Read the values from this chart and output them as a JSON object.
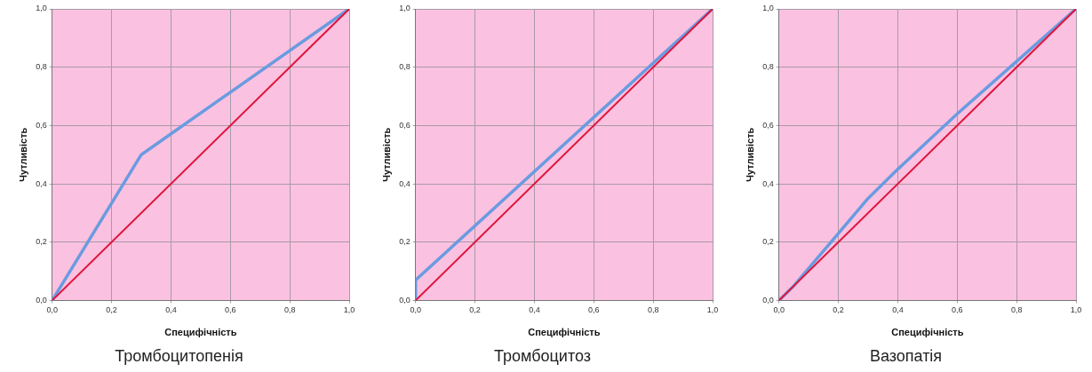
{
  "chart_data": [
    {
      "type": "line",
      "title": "Тромбоцитопенія",
      "xlabel": "Специфічність",
      "ylabel": "Чутливість",
      "xlim": [
        0,
        1
      ],
      "ylim": [
        0,
        1
      ],
      "xticks": [
        {
          "value": 0,
          "label": "0,0"
        },
        {
          "value": 0.2,
          "label": "0,2"
        },
        {
          "value": 0.4,
          "label": "0,4"
        },
        {
          "value": 0.6,
          "label": "0,6"
        },
        {
          "value": 0.8,
          "label": "0,8"
        },
        {
          "value": 1,
          "label": "1,0"
        }
      ],
      "yticks": [
        {
          "value": 0,
          "label": "0,0"
        },
        {
          "value": 0.2,
          "label": "0,2"
        },
        {
          "value": 0.4,
          "label": "0,4"
        },
        {
          "value": 0.6,
          "label": "0,6"
        },
        {
          "value": 0.8,
          "label": "0,8"
        },
        {
          "value": 1,
          "label": "1,0"
        }
      ],
      "grid": true,
      "series": [
        {
          "color": "#6a9be0",
          "x": [
            0,
            0.3,
            1
          ],
          "values": [
            0,
            0.5,
            1
          ]
        },
        {
          "color": "#e0143c",
          "x": [
            0,
            1
          ],
          "values": [
            0,
            1
          ]
        }
      ]
    },
    {
      "type": "line",
      "title": "Тромбоцитоз",
      "xlabel": "Специфічність",
      "ylabel": "Чутливість",
      "xlim": [
        0,
        1
      ],
      "ylim": [
        0,
        1
      ],
      "xticks": [
        {
          "value": 0,
          "label": "0,0"
        },
        {
          "value": 0.2,
          "label": "0,2"
        },
        {
          "value": 0.4,
          "label": "0,4"
        },
        {
          "value": 0.6,
          "label": "0,6"
        },
        {
          "value": 0.8,
          "label": "0,8"
        },
        {
          "value": 1,
          "label": "1,0"
        }
      ],
      "yticks": [
        {
          "value": 0,
          "label": "0,0"
        },
        {
          "value": 0.2,
          "label": "0,2"
        },
        {
          "value": 0.4,
          "label": "0,4"
        },
        {
          "value": 0.6,
          "label": "0,6"
        },
        {
          "value": 0.8,
          "label": "0,8"
        },
        {
          "value": 1,
          "label": "1,0"
        }
      ],
      "grid": true,
      "series": [
        {
          "color": "#6a9be0",
          "x": [
            0,
            0,
            1
          ],
          "values": [
            0,
            0.07,
            1
          ]
        },
        {
          "color": "#e0143c",
          "x": [
            0,
            1
          ],
          "values": [
            0,
            1
          ]
        }
      ]
    },
    {
      "type": "line",
      "title": "Вазопатія",
      "xlabel": "Специфічність",
      "ylabel": "Чутливість",
      "xlim": [
        0,
        1
      ],
      "ylim": [
        0,
        1
      ],
      "xticks": [
        {
          "value": 0,
          "label": "0,0"
        },
        {
          "value": 0.2,
          "label": "0,2"
        },
        {
          "value": 0.4,
          "label": "0,4"
        },
        {
          "value": 0.6,
          "label": "0,6"
        },
        {
          "value": 0.8,
          "label": "0,8"
        },
        {
          "value": 1,
          "label": "1,0"
        }
      ],
      "yticks": [
        {
          "value": 0,
          "label": "0,0"
        },
        {
          "value": 0.2,
          "label": "0,2"
        },
        {
          "value": 0.4,
          "label": "0,4"
        },
        {
          "value": 0.6,
          "label": "0,6"
        },
        {
          "value": 0.8,
          "label": "0,8"
        },
        {
          "value": 1,
          "label": "1,0"
        }
      ],
      "grid": true,
      "series": [
        {
          "color": "#6a9be0",
          "x": [
            0,
            0.05,
            0.2,
            0.3,
            0.4,
            0.6,
            0.8,
            1
          ],
          "values": [
            0,
            0.05,
            0.23,
            0.35,
            0.45,
            0.64,
            0.82,
            1
          ]
        },
        {
          "color": "#e0143c",
          "x": [
            0,
            1
          ],
          "values": [
            0,
            1
          ]
        }
      ]
    }
  ]
}
